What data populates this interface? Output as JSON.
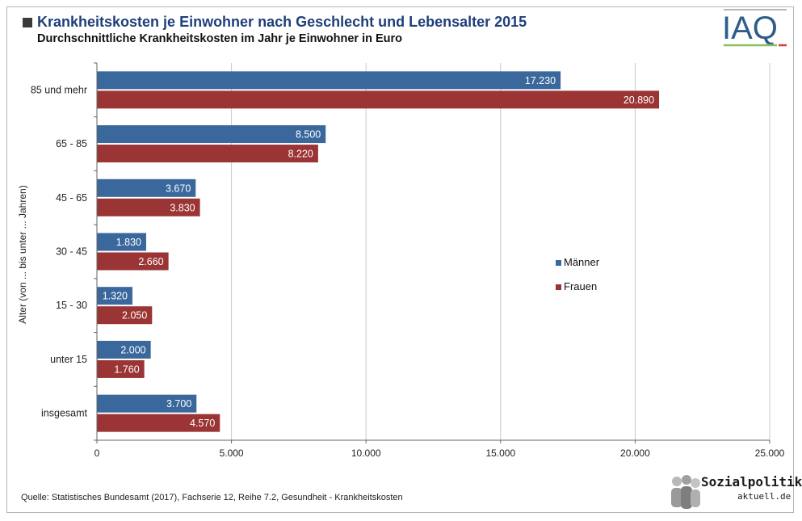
{
  "header": {
    "title": "Krankheitskosten je Einwohner nach Geschlecht und Lebensalter 2015",
    "subtitle": "Durchschnittliche Krankheitskosten im Jahr je Einwohner in Euro",
    "logo_text": "IAQ"
  },
  "footer": {
    "source": "Quelle:  Statistisches Bundesamt (2017), Fachserie 12, Reihe 7.2, Gesundheit - Krankheitskosten",
    "brand_top": "Sozialpolitik-",
    "brand_bottom": "aktuell.de"
  },
  "colors": {
    "maenner": "#3a679c",
    "frauen": "#9b3434",
    "grid": "#c8c8c8",
    "title": "#1f3f7a"
  },
  "chart_data": {
    "type": "bar",
    "orientation": "horizontal",
    "categories": [
      "85 und mehr",
      "65 - 85",
      "45 - 65",
      "30 - 45",
      "15 - 30",
      "unter 15",
      "insgesamt"
    ],
    "series": [
      {
        "name": "Männer",
        "values": [
          17230,
          8500,
          3670,
          1830,
          1320,
          2000,
          3700
        ],
        "labels": [
          "17.230",
          "8.500",
          "3.670",
          "1.830",
          "1.320",
          "2.000",
          "3.700"
        ]
      },
      {
        "name": "Frauen",
        "values": [
          20890,
          8220,
          3830,
          2660,
          2050,
          1760,
          4570
        ],
        "labels": [
          "20.890",
          "8.220",
          "3.830",
          "2.660",
          "2.050",
          "1.760",
          "4.570"
        ]
      }
    ],
    "xlim": [
      0,
      25000
    ],
    "xticks": [
      0,
      5000,
      10000,
      15000,
      20000,
      25000
    ],
    "xtick_labels": [
      "0",
      "5.000",
      "10.000",
      "15.000",
      "20.000",
      "25.000"
    ],
    "ylabel": "Alter (von ... bis unter ... Jahren)",
    "xlabel": "",
    "grid": true,
    "legend_position": "right"
  }
}
